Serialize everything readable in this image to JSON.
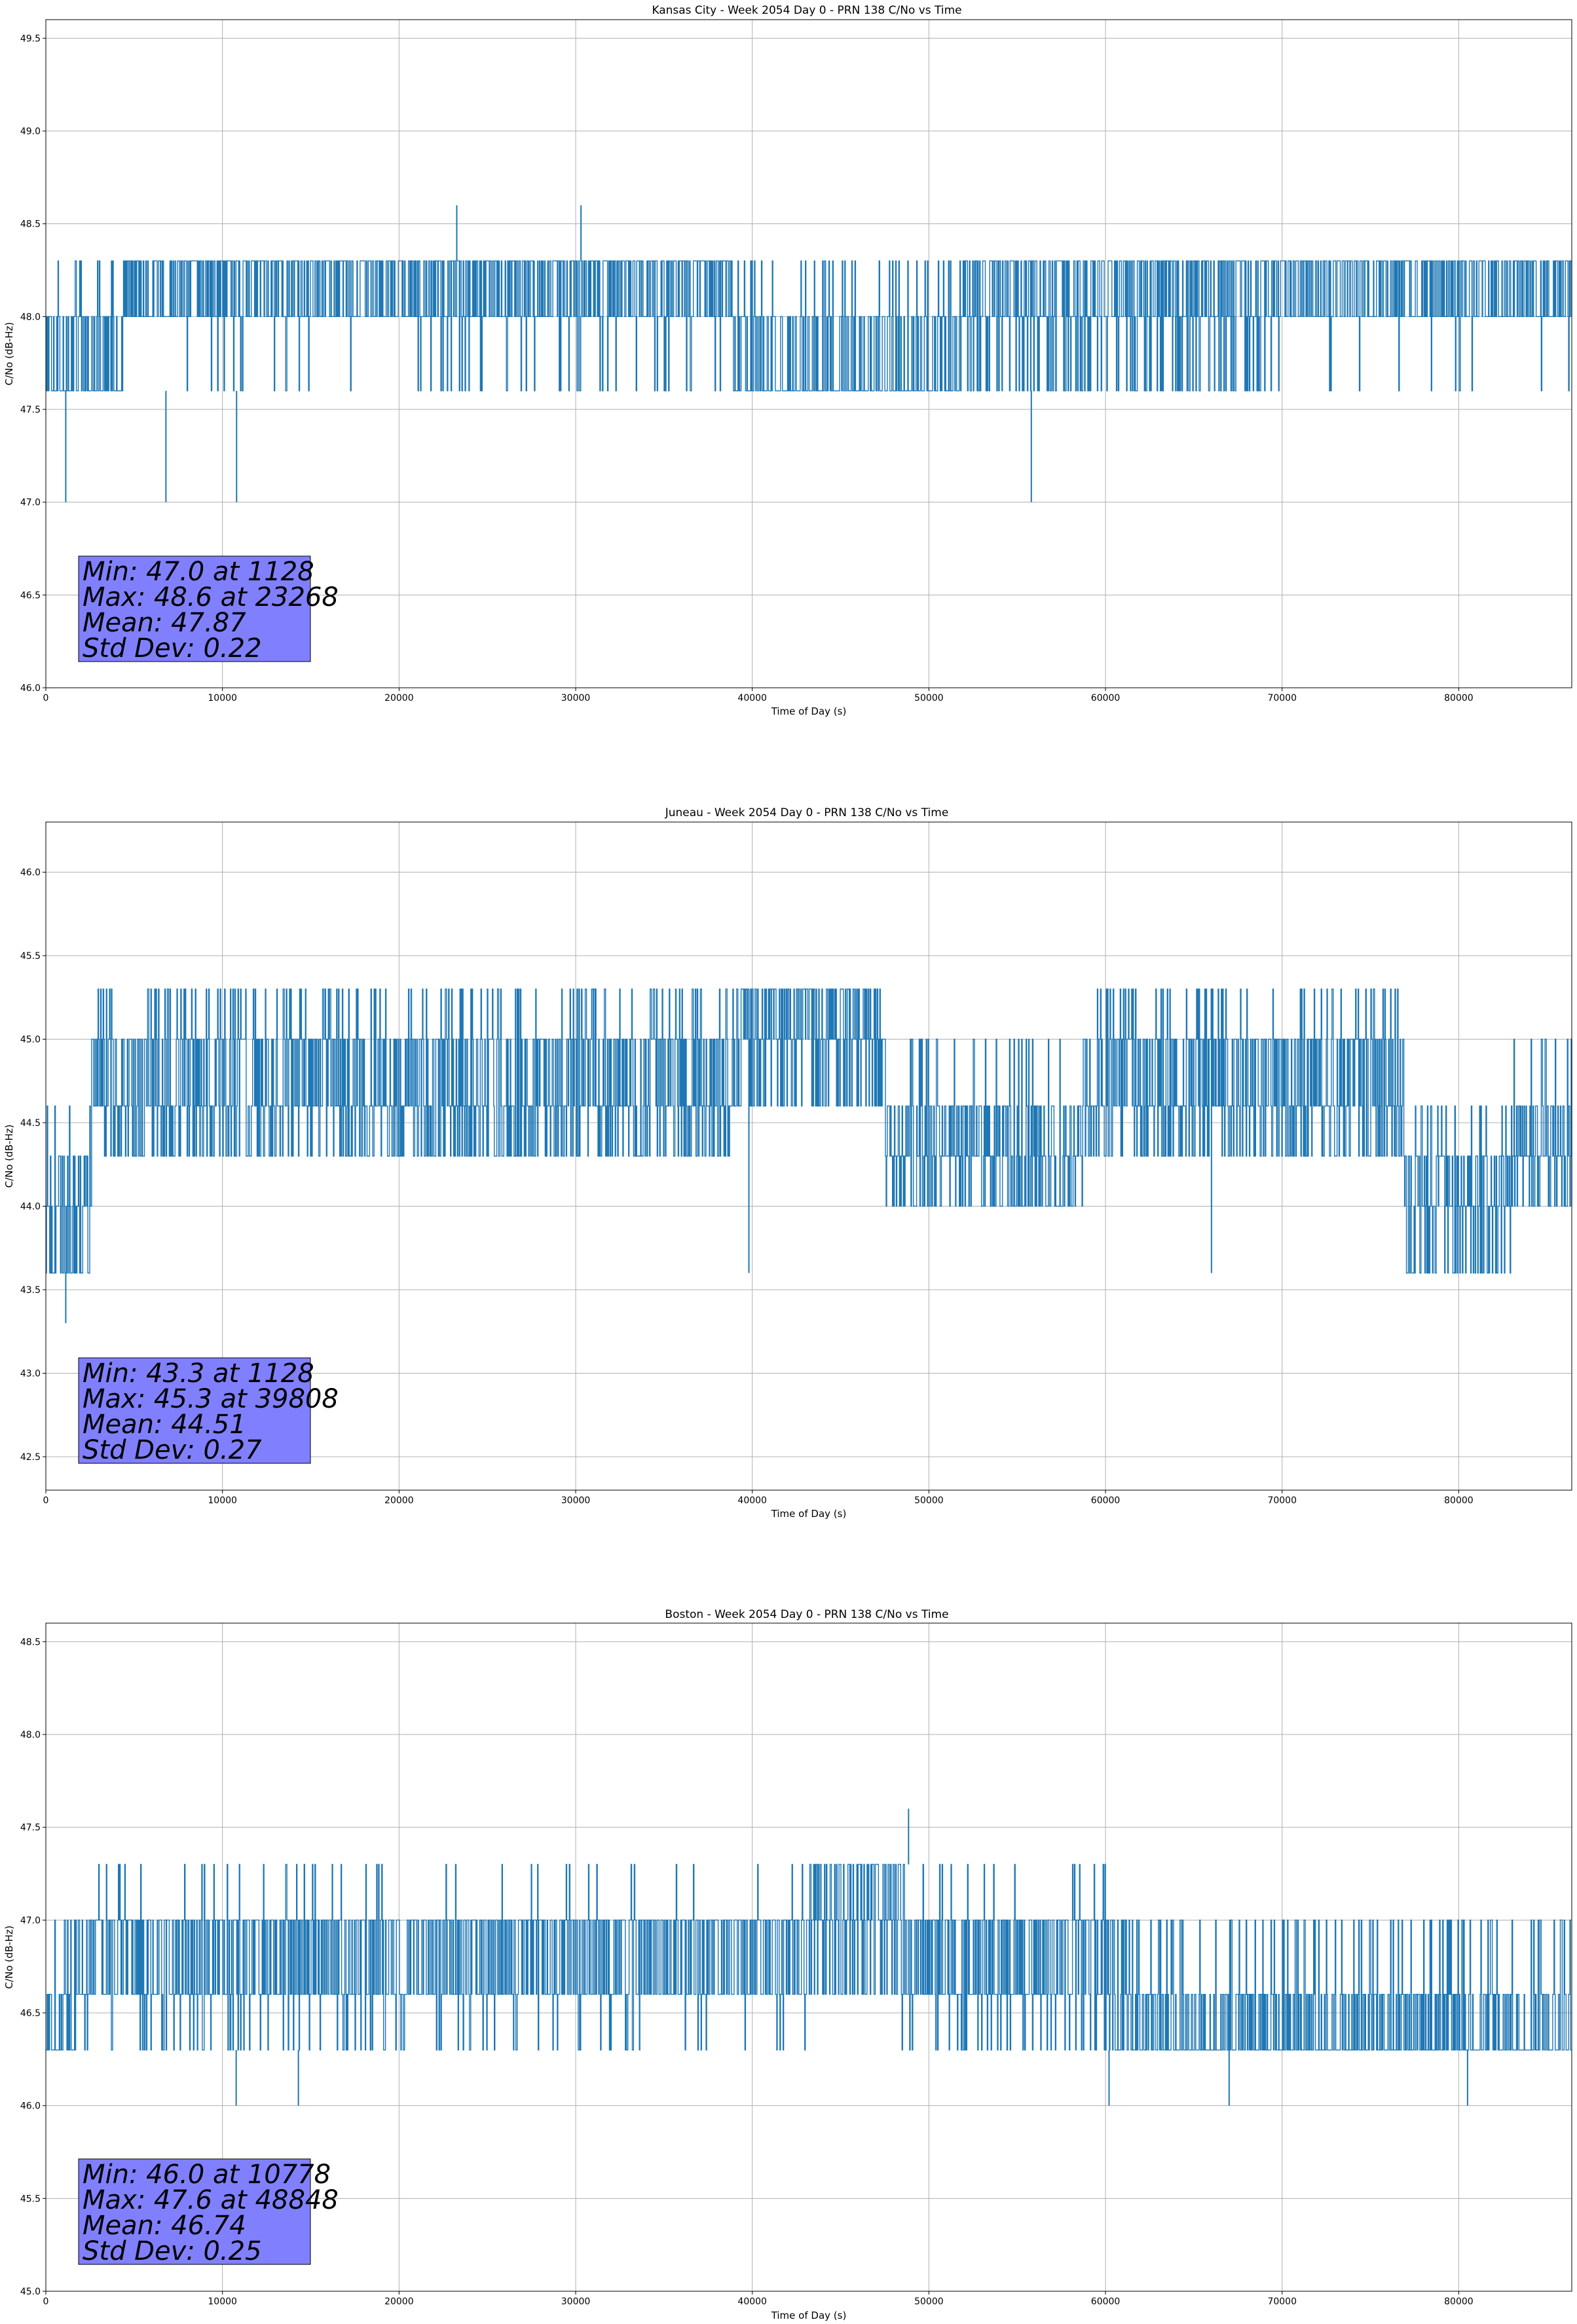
{
  "colors": {
    "series": "#1f77b4",
    "stats_box": "#8080ff",
    "grid": "#b0b0b0"
  },
  "chart_data": [
    {
      "type": "line",
      "title": "Kansas City - Week 2054 Day 0 - PRN 138 C/No vs Time",
      "xlabel": "Time of Day (s)",
      "ylabel": "C/No (dB-Hz)",
      "xlim": [
        0,
        86400
      ],
      "ylim": [
        46.0,
        49.6
      ],
      "xticks": [
        "0",
        "10000",
        "20000",
        "30000",
        "40000",
        "50000",
        "60000",
        "70000",
        "80000"
      ],
      "yticks": [
        "46.0",
        "46.5",
        "47.0",
        "47.5",
        "48.0",
        "48.5",
        "49.0",
        "49.5"
      ],
      "grid": true,
      "levels": [
        47.6,
        48.0,
        48.3
      ],
      "segments": [
        [
          0,
          0.05,
          0,
          0.7
        ],
        [
          0.05,
          0.25,
          1,
          0.95
        ],
        [
          0.25,
          0.45,
          1,
          0.85
        ],
        [
          0.45,
          0.6,
          0,
          0.6
        ],
        [
          0.6,
          0.8,
          1,
          0.75
        ],
        [
          0.8,
          1.0,
          1,
          0.95
        ]
      ],
      "series": [
        {
          "name": "",
          "x_range": [
            0,
            86400
          ],
          "band": [
            47.6,
            48.0
          ]
        }
      ],
      "annotations": [
        {
          "x": 1128,
          "y": 47.0,
          "note": "min"
        },
        {
          "x": 23268,
          "y": 48.6,
          "note": "max"
        },
        {
          "x": 30300,
          "y": 48.6
        },
        {
          "x": 6800,
          "y": 47.0
        },
        {
          "x": 10800,
          "y": 47.0
        },
        {
          "x": 55800,
          "y": 47.0
        }
      ],
      "stats": [
        "Min: 47.0 at 1128",
        "Max: 48.6 at 23268",
        "Mean: 47.87",
        "Std Dev: 0.22"
      ]
    },
    {
      "type": "line",
      "title": "Juneau - Week 2054 Day 0 - PRN 138 C/No vs Time",
      "xlabel": "Time of Day (s)",
      "ylabel": "C/No (dB-Hz)",
      "xlim": [
        0,
        86400
      ],
      "ylim": [
        42.3,
        46.3
      ],
      "xticks": [
        "0",
        "10000",
        "20000",
        "30000",
        "40000",
        "50000",
        "60000",
        "70000",
        "80000"
      ],
      "yticks": [
        "42.5",
        "43.0",
        "43.5",
        "44.0",
        "44.5",
        "45.0",
        "45.5",
        "46.0"
      ],
      "grid": true,
      "levels": [
        43.6,
        44.0,
        44.3,
        44.6,
        45.0,
        45.3
      ],
      "segments": [
        [
          0,
          0.03,
          1,
          0.6
        ],
        [
          0.03,
          0.25,
          3,
          0.6
        ],
        [
          0.25,
          0.45,
          3,
          0.6
        ],
        [
          0.45,
          0.55,
          4,
          0.7
        ],
        [
          0.55,
          0.68,
          2,
          0.6
        ],
        [
          0.68,
          0.8,
          3,
          0.65
        ],
        [
          0.8,
          0.89,
          3,
          0.6
        ],
        [
          0.89,
          0.96,
          1,
          0.6
        ],
        [
          0.96,
          1.0,
          2,
          0.6
        ]
      ],
      "series": [
        {
          "name": "",
          "x_range": [
            0,
            86400
          ],
          "band": [
            44.0,
            45.0
          ]
        }
      ],
      "annotations": [
        {
          "x": 1128,
          "y": 43.3,
          "note": "min"
        },
        {
          "x": 39808,
          "y": 45.3,
          "note": "max"
        },
        {
          "x": 66000,
          "y": 45.3
        }
      ],
      "stats": [
        "Min: 43.3 at 1128",
        "Max: 45.3 at 39808",
        "Mean: 44.51",
        "Std Dev: 0.27"
      ]
    },
    {
      "type": "line",
      "title": "Boston - Week 2054 Day 0 - PRN 138 C/No vs Time",
      "xlabel": "Time of Day (s)",
      "ylabel": "C/No (dB-Hz)",
      "xlim": [
        0,
        86400
      ],
      "ylim": [
        45.0,
        48.6
      ],
      "xticks": [
        "0",
        "10000",
        "20000",
        "30000",
        "40000",
        "50000",
        "60000",
        "70000",
        "80000"
      ],
      "yticks": [
        "45.0",
        "45.5",
        "46.0",
        "46.5",
        "47.0",
        "47.5",
        "48.0",
        "48.5"
      ],
      "grid": true,
      "levels": [
        46.3,
        46.6,
        47.0,
        47.3
      ],
      "segments": [
        [
          0,
          0.02,
          0,
          0.6
        ],
        [
          0.02,
          0.23,
          1,
          0.85
        ],
        [
          0.23,
          0.5,
          1,
          0.9
        ],
        [
          0.5,
          0.56,
          2,
          0.6
        ],
        [
          0.56,
          0.7,
          1,
          0.8
        ],
        [
          0.7,
          1.0,
          0,
          0.6
        ]
      ],
      "series": [
        {
          "name": "",
          "x_range": [
            0,
            86400
          ],
          "band": [
            46.3,
            47.0
          ]
        }
      ],
      "annotations": [
        {
          "x": 10778,
          "y": 46.0,
          "note": "min"
        },
        {
          "x": 48848,
          "y": 47.6,
          "note": "max"
        },
        {
          "x": 14300,
          "y": 46.0
        },
        {
          "x": 60200,
          "y": 46.0
        },
        {
          "x": 67000,
          "y": 46.0
        },
        {
          "x": 80500,
          "y": 46.0
        }
      ],
      "stats": [
        "Min: 46.0 at 10778",
        "Max: 47.6 at 48848",
        "Mean: 46.74",
        "Std Dev: 0.25"
      ]
    }
  ]
}
